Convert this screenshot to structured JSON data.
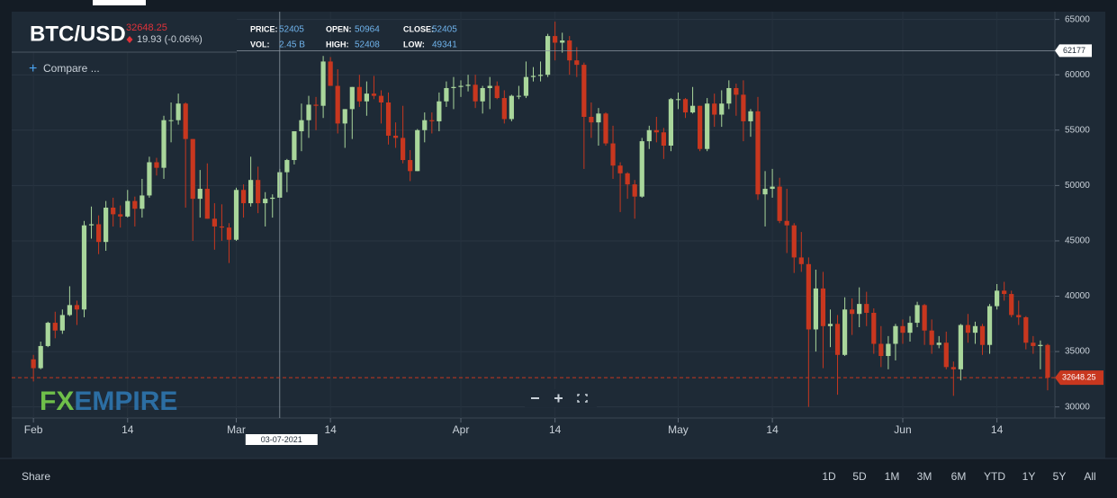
{
  "header": {
    "symbol": "BTC/USD",
    "last": "32648.25",
    "change": "19.93 (-0.06%)",
    "compare": "Compare ...",
    "info": [
      {
        "label": "PRICE:",
        "value": 52405
      },
      {
        "label": "OPEN:",
        "value": 50964
      },
      {
        "label": "CLOSE:",
        "value": 52405
      },
      {
        "label": "VOL:",
        "value": "2.45 B"
      },
      {
        "label": "HIGH:",
        "value": 52408
      },
      {
        "label": "LOW:",
        "value": 49341
      }
    ]
  },
  "logo": {
    "prefix": "FX",
    "suffix": "EMPIRE"
  },
  "chart_data": {
    "type": "candlestick",
    "x": [
      "2021-02-01",
      "2021-02-02",
      "2021-02-03",
      "2021-02-04",
      "2021-02-05",
      "2021-02-06",
      "2021-02-07",
      "2021-02-08",
      "2021-02-09",
      "2021-02-10",
      "2021-02-11",
      "2021-02-12",
      "2021-02-13",
      "2021-02-14",
      "2021-02-15",
      "2021-02-16",
      "2021-02-17",
      "2021-02-18",
      "2021-02-19",
      "2021-02-20",
      "2021-02-21",
      "2021-02-22",
      "2021-02-23",
      "2021-02-24",
      "2021-02-25",
      "2021-02-26",
      "2021-02-27",
      "2021-02-28",
      "2021-03-01",
      "2021-03-02",
      "2021-03-03",
      "2021-03-04",
      "2021-03-05",
      "2021-03-06",
      "2021-03-07",
      "2021-03-08",
      "2021-03-09",
      "2021-03-10",
      "2021-03-11",
      "2021-03-12",
      "2021-03-13",
      "2021-03-14",
      "2021-03-15",
      "2021-03-16",
      "2021-03-17",
      "2021-03-18",
      "2021-03-19",
      "2021-03-20",
      "2021-03-21",
      "2021-03-22",
      "2021-03-23",
      "2021-03-24",
      "2021-03-25",
      "2021-03-26",
      "2021-03-27",
      "2021-03-28",
      "2021-03-29",
      "2021-03-30",
      "2021-03-31",
      "2021-04-01",
      "2021-04-02",
      "2021-04-03",
      "2021-04-04",
      "2021-04-05",
      "2021-04-06",
      "2021-04-07",
      "2021-04-08",
      "2021-04-09",
      "2021-04-10",
      "2021-04-11",
      "2021-04-12",
      "2021-04-13",
      "2021-04-14",
      "2021-04-15",
      "2021-04-16",
      "2021-04-17",
      "2021-04-18",
      "2021-04-19",
      "2021-04-20",
      "2021-04-21",
      "2021-04-22",
      "2021-04-23",
      "2021-04-24",
      "2021-04-25",
      "2021-04-26",
      "2021-04-27",
      "2021-04-28",
      "2021-04-29",
      "2021-04-30",
      "2021-05-01",
      "2021-05-02",
      "2021-05-03",
      "2021-05-04",
      "2021-05-05",
      "2021-05-06",
      "2021-05-07",
      "2021-05-08",
      "2021-05-09",
      "2021-05-10",
      "2021-05-11",
      "2021-05-12",
      "2021-05-13",
      "2021-05-14",
      "2021-05-15",
      "2021-05-16",
      "2021-05-17",
      "2021-05-18",
      "2021-05-19",
      "2021-05-20",
      "2021-05-21",
      "2021-05-22",
      "2021-05-23",
      "2021-05-24",
      "2021-05-25",
      "2021-05-26",
      "2021-05-27",
      "2021-05-28",
      "2021-05-29",
      "2021-05-30",
      "2021-05-31",
      "2021-06-01",
      "2021-06-02",
      "2021-06-03",
      "2021-06-04",
      "2021-06-05",
      "2021-06-06",
      "2021-06-07",
      "2021-06-08",
      "2021-06-09",
      "2021-06-10",
      "2021-06-11",
      "2021-06-12",
      "2021-06-13",
      "2021-06-14",
      "2021-06-15",
      "2021-06-16",
      "2021-06-17",
      "2021-06-18",
      "2021-06-19",
      "2021-06-20",
      "2021-06-21"
    ],
    "open": [
      34300,
      33500,
      35500,
      37600,
      36900,
      38300,
      39200,
      38800,
      46400,
      46500,
      44900,
      48000,
      47400,
      47200,
      48600,
      47900,
      49100,
      52100,
      51600,
      55900,
      55900,
      57400,
      54200,
      48800,
      49700,
      47000,
      46300,
      46200,
      45100,
      49600,
      48400,
      50500,
      48400,
      48800,
      48900,
      51200,
      52300,
      54900,
      55900,
      57300,
      57200,
      61200,
      59000,
      55600,
      56900,
      58900,
      57600,
      58300,
      58100,
      57500,
      54500,
      54300,
      52300,
      51300,
      55000,
      55900,
      55800,
      57600,
      58800,
      58900,
      59000,
      59100,
      57600,
      58800,
      59000,
      57900,
      56000,
      58100,
      58100,
      59800,
      59900,
      60000,
      63500,
      62900,
      63100,
      61300,
      60900,
      56200,
      55700,
      56500,
      53800,
      51800,
      51100,
      50100,
      49000,
      54000,
      55000,
      54800,
      53600,
      57800,
      57800,
      56600,
      57200,
      53300,
      57400,
      56400,
      57400,
      58800,
      58200,
      55800,
      56700,
      49200,
      49700,
      49900,
      46800,
      46400,
      43500,
      42900,
      37000,
      40700,
      37300,
      37500,
      34700,
      38800,
      38400,
      39300,
      38500,
      35700,
      34600,
      35700,
      37300,
      36700,
      37600,
      39200,
      36900,
      35600,
      35800,
      33600,
      33400,
      37400,
      36700,
      37300,
      35600,
      39100,
      40500,
      40200,
      38300,
      38100,
      35800,
      35500,
      35600
    ],
    "high": [
      34700,
      35900,
      37700,
      38600,
      38800,
      40900,
      39600,
      46800,
      48100,
      47300,
      48600,
      48900,
      48200,
      49600,
      49000,
      50600,
      52600,
      52500,
      56300,
      57500,
      58300,
      57500,
      54200,
      51400,
      52000,
      48400,
      48300,
      46600,
      49800,
      50100,
      52600,
      51700,
      49400,
      49200,
      51500,
      52400,
      54900,
      57400,
      58100,
      58000,
      61700,
      61600,
      60500,
      56900,
      58900,
      60000,
      59400,
      59900,
      58600,
      58400,
      55700,
      57200,
      53200,
      55100,
      56600,
      56600,
      58400,
      59400,
      59800,
      59500,
      60000,
      60000,
      59000,
      59800,
      59400,
      58600,
      58200,
      59000,
      61200,
      60700,
      61200,
      63700,
      64800,
      63800,
      63500,
      62500,
      61100,
      57500,
      57000,
      56600,
      55400,
      52100,
      51200,
      50500,
      54300,
      55400,
      56200,
      55200,
      57900,
      58400,
      57900,
      58900,
      57200,
      57900,
      58300,
      58600,
      59500,
      59200,
      59500,
      56900,
      58000,
      51300,
      51500,
      50700,
      49700,
      46600,
      45800,
      43500,
      42400,
      42200,
      38800,
      38300,
      39900,
      39800,
      40800,
      40400,
      38900,
      37300,
      36400,
      37500,
      37900,
      38200,
      39500,
      39300,
      37900,
      36400,
      36800,
      34100,
      37500,
      38400,
      37700,
      37500,
      39300,
      41100,
      41300,
      40500,
      39600,
      38200,
      36400,
      36000,
      35700
    ],
    "low": [
      32300,
      33400,
      35400,
      36200,
      36600,
      38200,
      37400,
      38100,
      45200,
      43800,
      44100,
      46300,
      46200,
      47100,
      46300,
      47100,
      48900,
      50900,
      50600,
      53900,
      55500,
      48000,
      45000,
      47100,
      47000,
      44200,
      45000,
      43000,
      45000,
      47100,
      48100,
      47500,
      46300,
      47100,
      48900,
      49400,
      51900,
      53100,
      54300,
      55000,
      56100,
      59000,
      54700,
      53400,
      54200,
      57100,
      56300,
      57800,
      55600,
      53700,
      53400,
      52000,
      50400,
      51300,
      53900,
      54700,
      54900,
      57100,
      56900,
      58000,
      58500,
      57000,
      56500,
      56900,
      57800,
      55600,
      55800,
      57800,
      57900,
      59400,
      59400,
      59800,
      61300,
      62000,
      60000,
      59800,
      51500,
      54300,
      53600,
      53600,
      50600,
      47600,
      48800,
      47000,
      48900,
      53300,
      53900,
      52400,
      53100,
      56900,
      56100,
      56500,
      53100,
      53100,
      55300,
      55300,
      56900,
      56300,
      54000,
      54400,
      48700,
      46300,
      48900,
      46600,
      43900,
      42100,
      42200,
      30000,
      35000,
      33500,
      35400,
      31100,
      34600,
      36500,
      37200,
      37300,
      34800,
      33600,
      33400,
      34200,
      35700,
      35900,
      37200,
      35600,
      34800,
      35300,
      33400,
      31000,
      32400,
      35800,
      35700,
      34700,
      34800,
      38800,
      39600,
      38100,
      37400,
      35200,
      34800,
      33400,
      31500
    ],
    "close": [
      33500,
      35500,
      37600,
      36900,
      38300,
      39200,
      38800,
      46400,
      46500,
      44900,
      48000,
      47400,
      47200,
      48600,
      47900,
      49100,
      52100,
      51600,
      55900,
      55900,
      57400,
      54200,
      48800,
      49700,
      47000,
      46300,
      46200,
      45100,
      49600,
      48400,
      50500,
      48400,
      48800,
      48900,
      51200,
      52300,
      54900,
      55900,
      57300,
      57200,
      61200,
      59000,
      55600,
      56900,
      58900,
      57600,
      58300,
      58100,
      57500,
      54500,
      54300,
      52300,
      51300,
      55000,
      55900,
      55800,
      57600,
      58800,
      58900,
      59000,
      59100,
      57600,
      58800,
      59000,
      57900,
      56000,
      58100,
      58100,
      59800,
      59900,
      60000,
      63500,
      62900,
      63100,
      61300,
      60900,
      56200,
      55700,
      56500,
      53800,
      51800,
      51100,
      50100,
      49000,
      54000,
      55000,
      54800,
      53600,
      57800,
      57800,
      56600,
      57200,
      53300,
      57400,
      56400,
      57400,
      58800,
      58200,
      55800,
      56700,
      49200,
      49700,
      49900,
      46800,
      46400,
      43500,
      42900,
      37000,
      40700,
      37300,
      37500,
      34700,
      38800,
      38400,
      39300,
      38500,
      35700,
      34600,
      35700,
      37300,
      36700,
      37600,
      39200,
      36900,
      35600,
      35800,
      33600,
      33400,
      37400,
      36700,
      37300,
      35600,
      39100,
      40500,
      40200,
      38300,
      38100,
      35800,
      35500,
      35600,
      32648.25
    ],
    "up_color": "#a9d69b",
    "down_color": "#c8371f",
    "xlim": [
      "2021-01-29",
      "2021-06-22"
    ],
    "xticks": [
      {
        "value": "2021-02-01",
        "label": "Feb"
      },
      {
        "value": "2021-02-14",
        "label": "14"
      },
      {
        "value": "2021-03-01",
        "label": "Mar"
      },
      {
        "value": "2021-03-14",
        "label": "14"
      },
      {
        "value": "2021-04-01",
        "label": "Apr"
      },
      {
        "value": "2021-04-14",
        "label": "14"
      },
      {
        "value": "2021-05-01",
        "label": "May"
      },
      {
        "value": "2021-05-14",
        "label": "14"
      },
      {
        "value": "2021-06-01",
        "label": "Jun"
      },
      {
        "value": "2021-06-14",
        "label": "14"
      }
    ],
    "ylim": [
      29000,
      65700
    ],
    "yticks": [
      30000,
      35000,
      40000,
      45000,
      50000,
      55000,
      60000,
      65000
    ],
    "grid": true,
    "crosshair": {
      "x": "2021-03-07",
      "x_label": "03-07-2021",
      "y": 62177
    },
    "last_price": 32648.25
  },
  "footer": {
    "share": "Share",
    "ranges": [
      "1D",
      "5D",
      "1M",
      "3M",
      "6M",
      "YTD",
      "1Y",
      "5Y",
      "All"
    ]
  }
}
